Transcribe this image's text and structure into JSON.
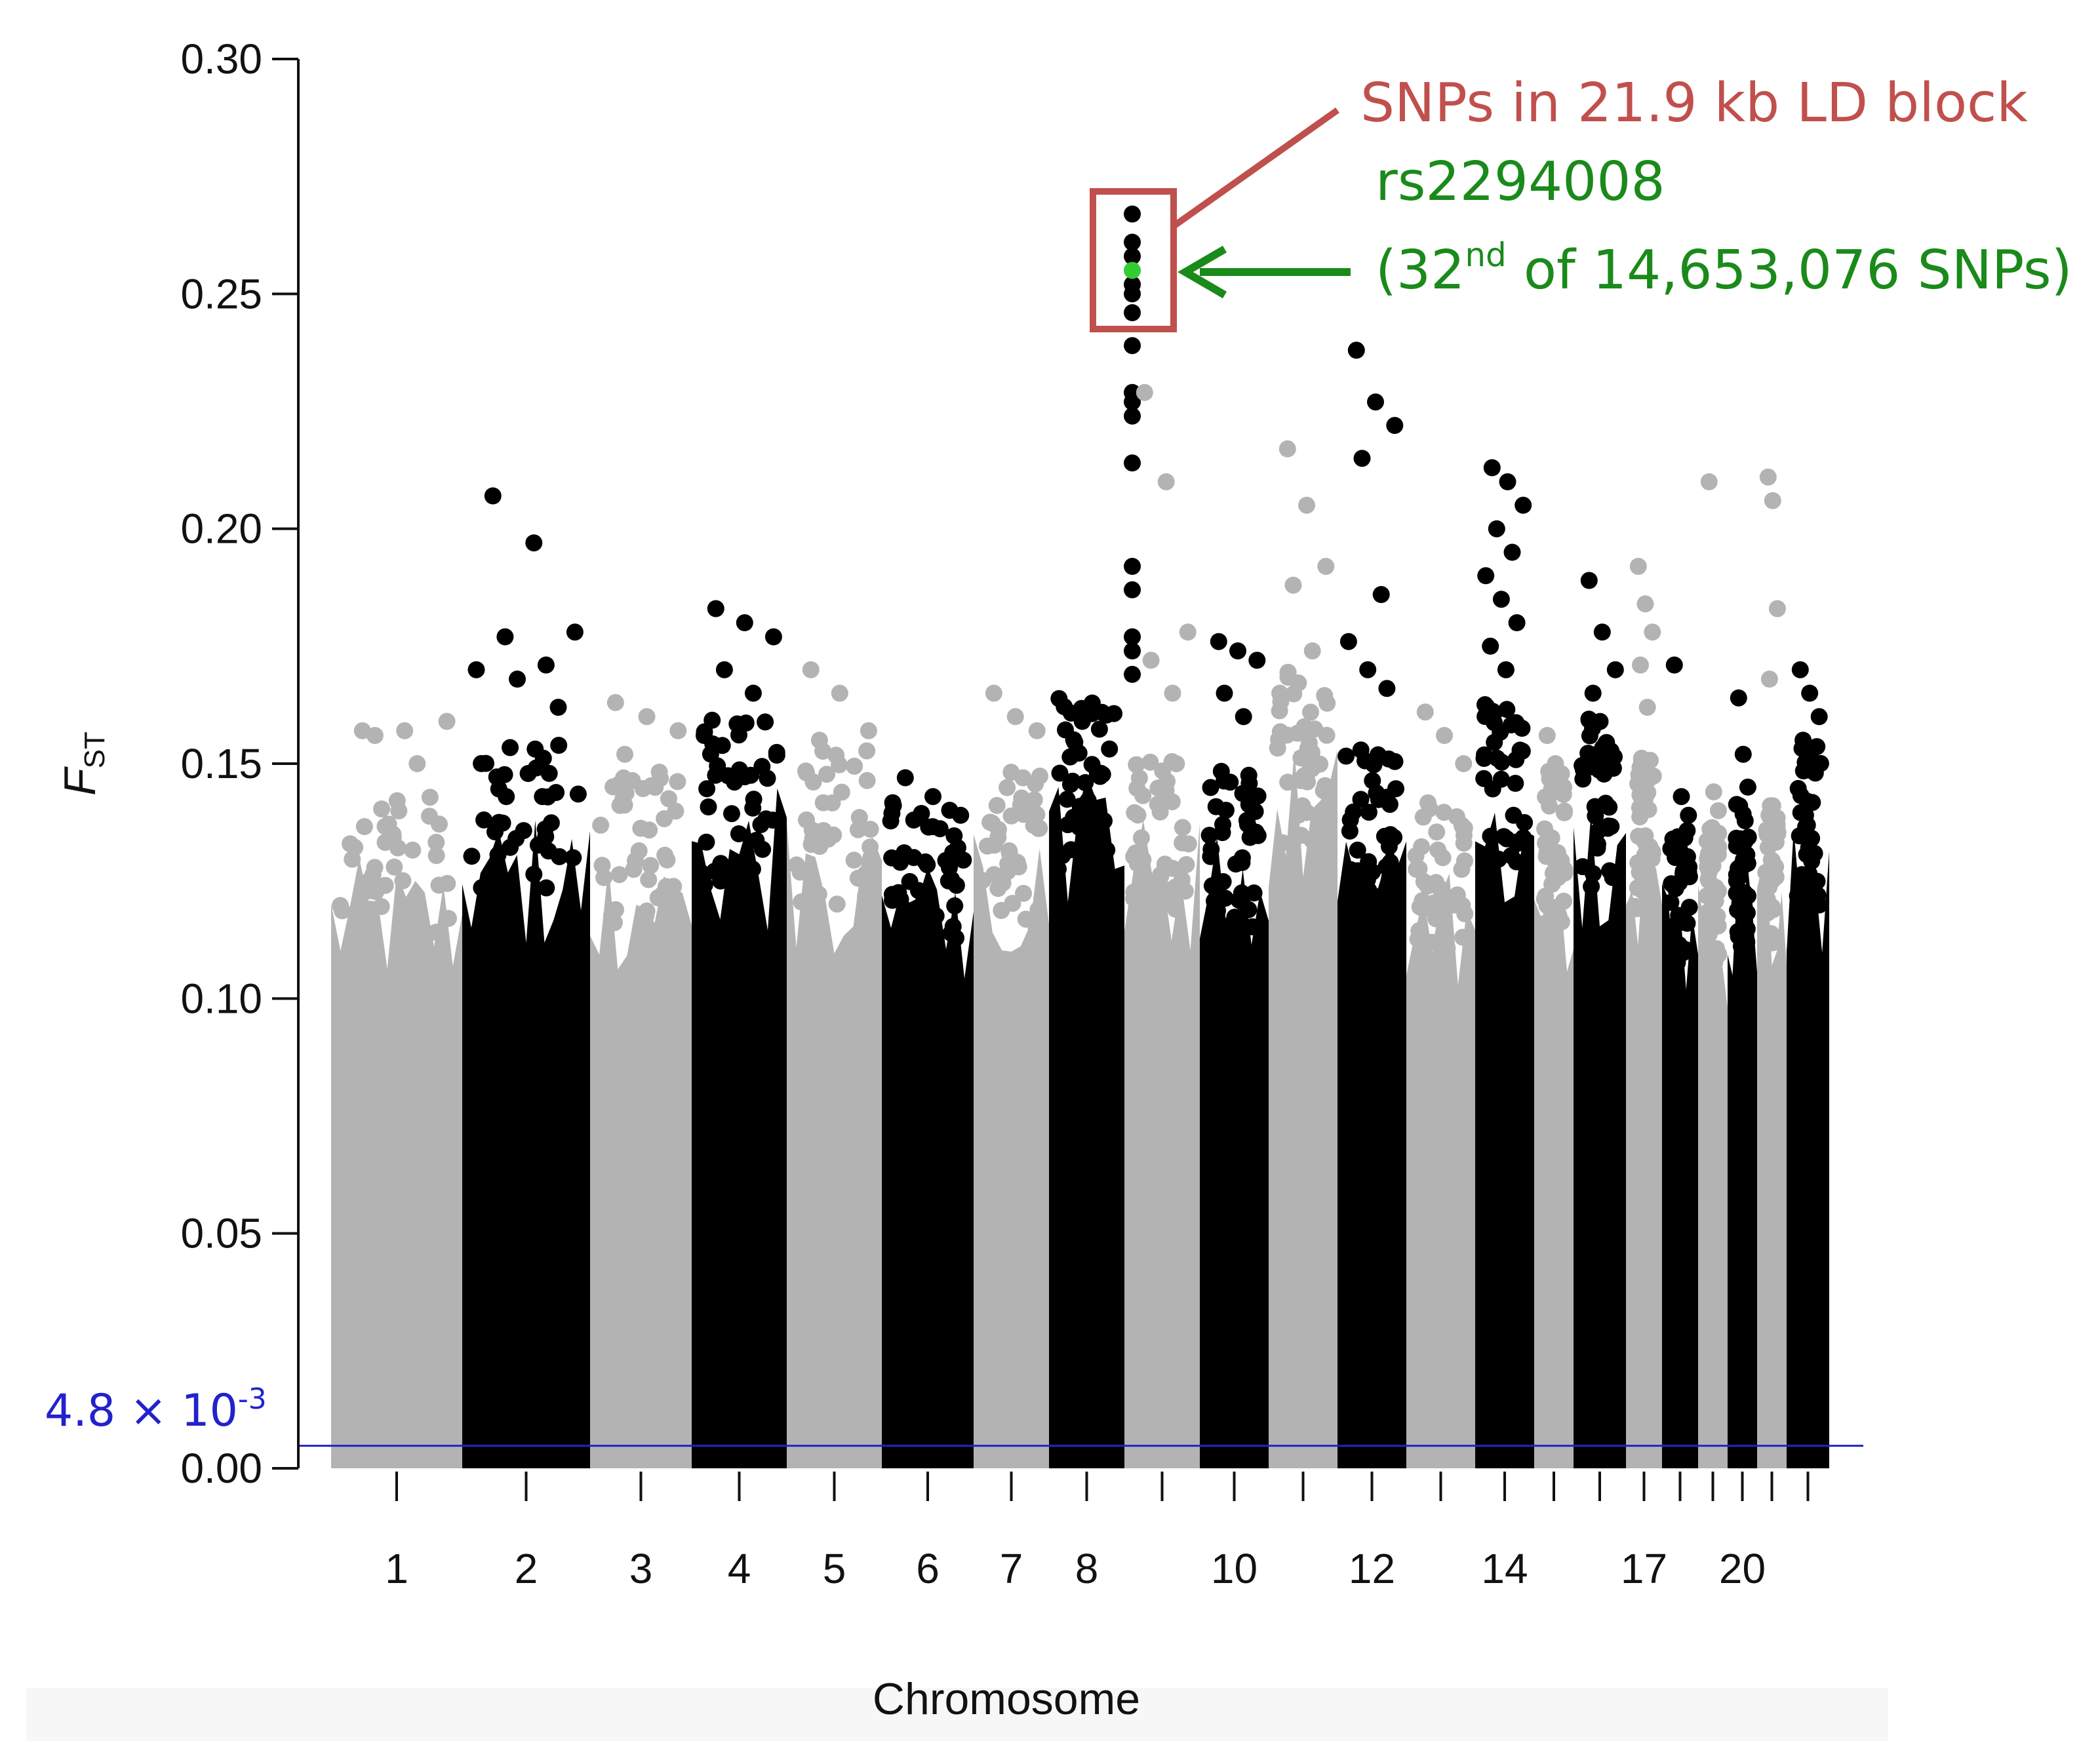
{
  "chart_data": {
    "type": "scatter",
    "subtype": "manhattan",
    "title": "",
    "xlabel": "Chromosome",
    "ylabel_main": "F",
    "ylabel_sub": "ST",
    "ylim": [
      0,
      0.3
    ],
    "y_ticks": [
      "0.00",
      "0.05",
      "0.10",
      "0.15",
      "0.20",
      "0.25",
      "0.30"
    ],
    "y_tick_values": [
      0.0,
      0.05,
      0.1,
      0.15,
      0.2,
      0.25,
      0.3
    ],
    "x_tick_labels": [
      "1",
      "2",
      "3",
      "4",
      "5",
      "6",
      "7",
      "8",
      "10",
      "12",
      "14",
      "17",
      "20"
    ],
    "colors": {
      "odd_chromosome": "#b3b3b3",
      "even_chromosome": "#000000",
      "highlight_snp": "#33cc33",
      "threshold_line": "#2222cc",
      "ld_box": "#c0504d",
      "snp_annotation": "#1a8a1a"
    },
    "chromosomes": [
      {
        "chr": 1,
        "base": 0.13,
        "outliers": [
          0.157,
          0.157,
          0.159,
          0.156,
          0.15
        ]
      },
      {
        "chr": 2,
        "base": 0.14,
        "outliers": [
          0.207,
          0.197,
          0.178,
          0.177,
          0.171,
          0.17,
          0.168,
          0.162
        ]
      },
      {
        "chr": 3,
        "base": 0.135,
        "outliers": [
          0.163,
          0.16,
          0.157,
          0.152
        ]
      },
      {
        "chr": 4,
        "base": 0.145,
        "outliers": [
          0.183,
          0.18,
          0.177,
          0.17,
          0.165,
          0.156
        ]
      },
      {
        "chr": 5,
        "base": 0.14,
        "outliers": [
          0.17,
          0.165,
          0.157,
          0.155
        ]
      },
      {
        "chr": 6,
        "base": 0.13,
        "outliers": [
          0.147,
          0.143,
          0.139
        ]
      },
      {
        "chr": 7,
        "base": 0.135,
        "outliers": [
          0.165,
          0.16,
          0.157
        ]
      },
      {
        "chr": 8,
        "base": 0.15,
        "outliers": [
          0.267,
          0.261,
          0.258,
          0.252,
          0.25,
          0.246,
          0.239,
          0.229,
          0.227,
          0.224,
          0.214,
          0.192,
          0.187,
          0.177,
          0.174,
          0.169
        ]
      },
      {
        "chr": 9,
        "base": 0.14,
        "outliers": [
          0.229,
          0.21,
          0.178,
          0.172,
          0.165
        ]
      },
      {
        "chr": 10,
        "base": 0.135,
        "outliers": [
          0.176,
          0.174,
          0.172,
          0.165,
          0.16
        ]
      },
      {
        "chr": 11,
        "base": 0.155,
        "outliers": [
          0.217,
          0.205,
          0.192,
          0.188,
          0.174,
          0.165
        ]
      },
      {
        "chr": 12,
        "base": 0.14,
        "outliers": [
          0.238,
          0.227,
          0.222,
          0.215,
          0.186,
          0.176,
          0.17,
          0.166
        ]
      },
      {
        "chr": 13,
        "base": 0.13,
        "outliers": [
          0.161,
          0.156,
          0.15
        ]
      },
      {
        "chr": 14,
        "base": 0.15,
        "outliers": [
          0.213,
          0.21,
          0.205,
          0.2,
          0.195,
          0.19,
          0.185,
          0.18,
          0.175,
          0.17
        ]
      },
      {
        "chr": 15,
        "base": 0.135,
        "outliers": [
          0.156,
          0.15,
          0.145
        ]
      },
      {
        "chr": 16,
        "base": 0.145,
        "outliers": [
          0.189,
          0.178,
          0.17,
          0.165
        ]
      },
      {
        "chr": 17,
        "base": 0.14,
        "outliers": [
          0.192,
          0.184,
          0.178,
          0.171,
          0.162
        ]
      },
      {
        "chr": 18,
        "base": 0.125,
        "outliers": [
          0.171,
          0.143,
          0.139
        ]
      },
      {
        "chr": 19,
        "base": 0.125,
        "outliers": [
          0.21,
          0.144,
          0.14
        ]
      },
      {
        "chr": 20,
        "base": 0.13,
        "outliers": [
          0.164,
          0.152,
          0.145
        ]
      },
      {
        "chr": 21,
        "base": 0.13,
        "outliers": [
          0.211,
          0.206,
          0.183,
          0.168
        ]
      },
      {
        "chr": 22,
        "base": 0.14,
        "outliers": [
          0.17,
          0.165,
          0.16,
          0.155,
          0.15
        ]
      }
    ],
    "threshold": {
      "value": 0.0048,
      "label_base": "4.8 × 10",
      "label_exp": "-3"
    },
    "highlight": {
      "chr": 8,
      "fst": 0.255
    }
  },
  "annotations": {
    "ld_block_label": "SNPs in 21.9 kb LD block",
    "snp_id": "rs2294008",
    "snp_rank_prefix": "(32",
    "snp_rank_sup": "nd",
    "snp_rank_suffix": " of 14,653,076 SNPs)"
  }
}
